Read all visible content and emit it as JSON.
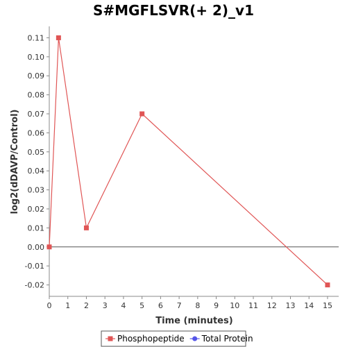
{
  "chart_data": {
    "type": "line",
    "title": "S#MGFLSVR(+ 2)_v1",
    "xlabel": "Time (minutes)",
    "ylabel": "log2(dDAVP/Control)",
    "xlim": [
      0,
      15.6
    ],
    "ylim": [
      -0.026,
      0.116
    ],
    "x_ticks": [
      0,
      1,
      2,
      3,
      4,
      5,
      6,
      7,
      8,
      9,
      10,
      11,
      12,
      13,
      14,
      15
    ],
    "y_ticks": [
      -0.02,
      -0.01,
      0.0,
      0.01,
      0.02,
      0.03,
      0.04,
      0.05,
      0.06,
      0.07,
      0.08,
      0.09,
      0.1,
      0.11
    ],
    "y_tick_labels": [
      "-0.02",
      "-0.01",
      "0.00",
      "0.01",
      "0.02",
      "0.03",
      "0.04",
      "0.05",
      "0.06",
      "0.07",
      "0.08",
      "0.09",
      "0.10",
      "0.11"
    ],
    "zero_line": 0,
    "grid": false,
    "legend_position": "bottom",
    "series": [
      {
        "name": "Phosphopeptide",
        "color": "#e05555",
        "marker": "square",
        "x": [
          0,
          0.5,
          2,
          5,
          15
        ],
        "y": [
          0.0,
          0.11,
          0.01,
          0.07,
          -0.02
        ]
      },
      {
        "name": "Total Protein",
        "color": "#5555e8",
        "marker": "circle",
        "x": [],
        "y": []
      }
    ]
  }
}
